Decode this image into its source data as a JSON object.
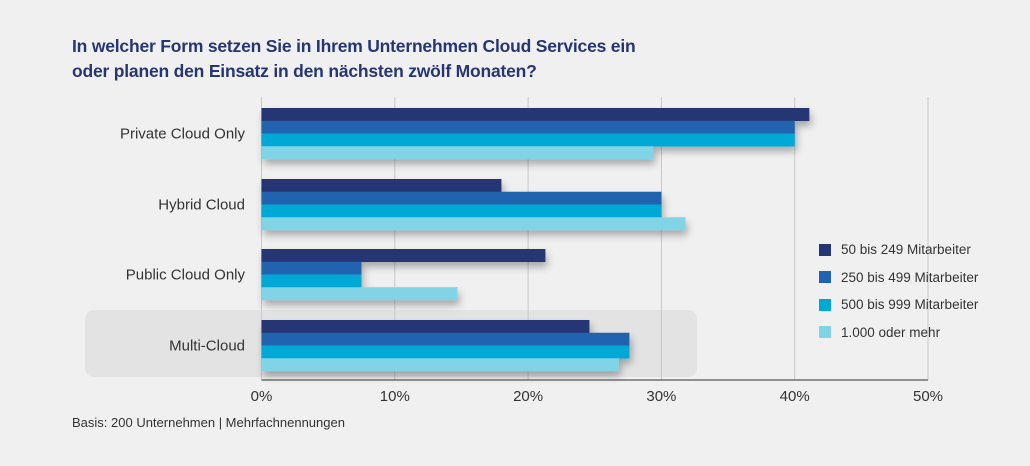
{
  "chart_data": {
    "type": "bar",
    "orientation": "horizontal",
    "title": "In welcher Form setzen Sie in Ihrem Unternehmen Cloud Services ein oder planen den Einsatz in den nächsten zwölf Monaten?",
    "title_lines": [
      "In welcher Form setzen Sie in Ihrem Unternehmen Cloud Services ein",
      "oder planen den Einsatz in den nächsten zwölf Monaten?"
    ],
    "categories": [
      "Private Cloud Only",
      "Hybrid Cloud",
      "Public Cloud Only",
      "Multi-Cloud"
    ],
    "highlighted_category": "Multi-Cloud",
    "series": [
      {
        "name": "50 bis 249 Mitarbeiter",
        "color": "#263673",
        "values": [
          41.1,
          18.0,
          21.3,
          24.6
        ]
      },
      {
        "name": "250 bis 499 Mitarbeiter",
        "color": "#2163b0",
        "values": [
          40.0,
          30.0,
          7.5,
          27.6
        ]
      },
      {
        "name": "500 bis 999 Mitarbeiter",
        "color": "#00a8d6",
        "values": [
          40.0,
          30.0,
          7.5,
          27.6
        ]
      },
      {
        "name": "1.000 oder mehr",
        "color": "#80d4e6",
        "values": [
          29.4,
          31.8,
          14.7,
          26.8
        ]
      }
    ],
    "xlabel": "",
    "ylabel": "",
    "xlim": [
      0,
      50
    ],
    "x_ticks": [
      0,
      10,
      20,
      30,
      40,
      50
    ],
    "x_tick_labels": [
      "0%",
      "10%",
      "20%",
      "30%",
      "40%",
      "50%"
    ],
    "unit": "%",
    "grid": true,
    "legend_position": "right"
  },
  "footnote": "Basis: 200 Unternehmen | Mehrfachnennungen"
}
